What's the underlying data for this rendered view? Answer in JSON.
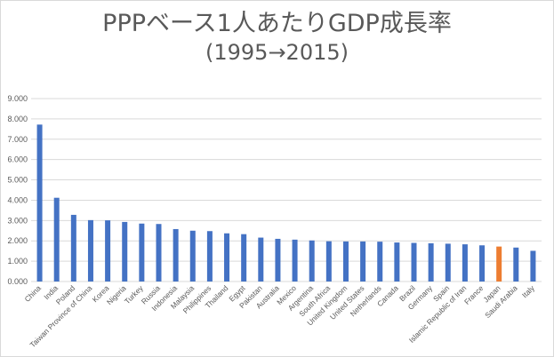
{
  "chart_data": {
    "type": "bar",
    "title": "PPPベース1人あたりGDP成長率",
    "subtitle": "(1995→2015)",
    "xlabel": "",
    "ylabel": "",
    "ylim": [
      0,
      9
    ],
    "yticks": [
      "0.000",
      "1.000",
      "2.000",
      "3.000",
      "4.000",
      "5.000",
      "6.000",
      "7.000",
      "8.000",
      "9.000"
    ],
    "grid": true,
    "legend": "none",
    "colors": {
      "default": "#4472c4",
      "highlight": "#ed7d31",
      "grid": "#d9d9d9"
    },
    "highlight_category": "Japan",
    "categories": [
      "China",
      "India",
      "Poland",
      "Taiwan Province of China",
      "Korea",
      "Nigeria",
      "Turkey",
      "Russia",
      "Indonesia",
      "Malaysia",
      "Philippines",
      "Thailand",
      "Egypt",
      "Pakistan",
      "Australia",
      "Mexico",
      "Argentina",
      "South Africa",
      "United Kingdom",
      "United States",
      "Netherlands",
      "Canada",
      "Brazil",
      "Germany",
      "Spain",
      "Islamic Republic of Iran",
      "France",
      "Japan",
      "Saudi Arabia",
      "Italy"
    ],
    "values": [
      7.72,
      4.12,
      3.28,
      3.02,
      3.01,
      2.93,
      2.85,
      2.83,
      2.58,
      2.5,
      2.48,
      2.37,
      2.33,
      2.16,
      2.1,
      2.06,
      2.02,
      1.98,
      1.97,
      1.97,
      1.96,
      1.92,
      1.9,
      1.88,
      1.86,
      1.83,
      1.78,
      1.72,
      1.67,
      1.51
    ]
  }
}
